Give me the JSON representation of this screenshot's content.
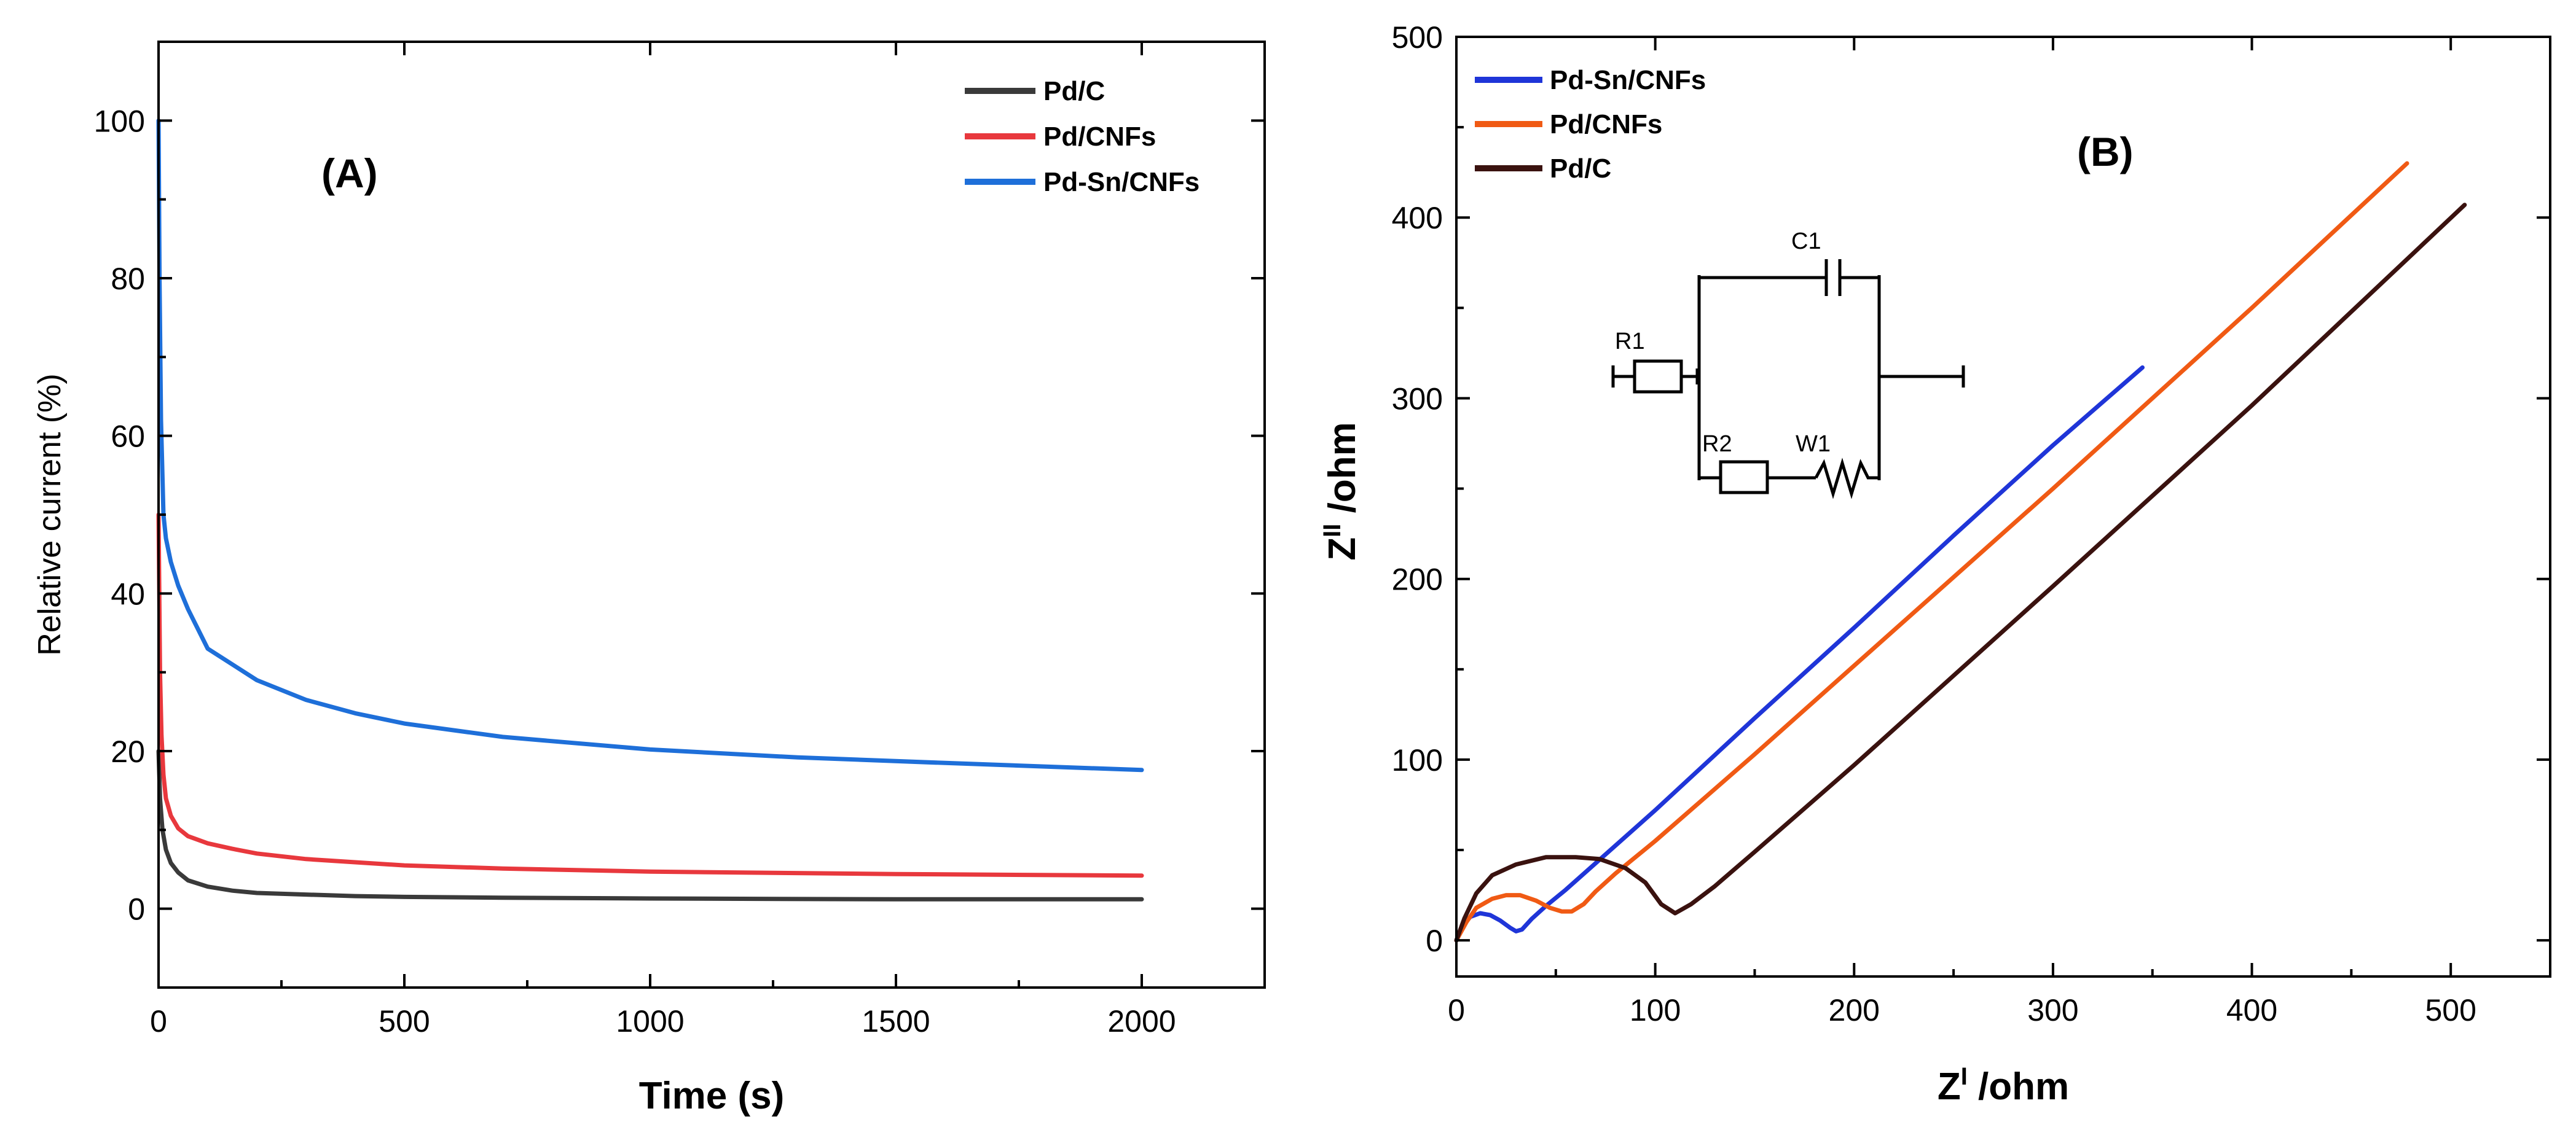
{
  "chart_data": [
    {
      "id": "A",
      "type": "line",
      "panel_label": "(A)",
      "xlabel": "Time (s)",
      "ylabel": "Relative current (%)",
      "xlim": [
        0,
        2250
      ],
      "ylim": [
        -10,
        110
      ],
      "xticks": [
        0,
        500,
        1000,
        1500,
        2000
      ],
      "yticks": [
        0,
        20,
        40,
        60,
        80,
        100
      ],
      "legend_position": "top-right",
      "series": [
        {
          "name": "Pd/C",
          "color": "#3a3a3a",
          "x": [
            0,
            3,
            8,
            15,
            25,
            40,
            60,
            100,
            150,
            200,
            300,
            400,
            500,
            700,
            1000,
            1500,
            2000
          ],
          "y": [
            20,
            14,
            10,
            7.5,
            5.8,
            4.6,
            3.6,
            2.8,
            2.3,
            2.0,
            1.8,
            1.6,
            1.5,
            1.4,
            1.3,
            1.2,
            1.2
          ]
        },
        {
          "name": "Pd/CNFs",
          "color": "#e8383d",
          "x": [
            0,
            3,
            6,
            10,
            15,
            25,
            40,
            60,
            100,
            150,
            200,
            300,
            400,
            500,
            700,
            1000,
            1500,
            2000
          ],
          "y": [
            50,
            30,
            22,
            17,
            14,
            11.8,
            10.2,
            9.2,
            8.3,
            7.6,
            7.0,
            6.3,
            5.9,
            5.5,
            5.1,
            4.7,
            4.4,
            4.2
          ]
        },
        {
          "name": "Pd-Sn/CNFs",
          "color": "#1e6fd9",
          "x": [
            0,
            2,
            5,
            10,
            15,
            25,
            40,
            60,
            80,
            100,
            150,
            200,
            300,
            400,
            500,
            700,
            1000,
            1300,
            1600,
            2000
          ],
          "y": [
            100,
            80,
            62,
            50,
            47,
            44,
            41,
            38,
            35.5,
            33,
            31,
            29,
            26.5,
            24.8,
            23.5,
            21.8,
            20.2,
            19.2,
            18.5,
            17.6
          ]
        }
      ]
    },
    {
      "id": "B",
      "type": "line",
      "panel_label": "(B)",
      "xlabel": "Z",
      "xlabel_sup": "I",
      "xlabel_unit": " /ohm",
      "ylabel": "Z",
      "ylabel_sup": "II",
      "ylabel_unit": " /ohm",
      "xlim": [
        0,
        550
      ],
      "ylim": [
        -20,
        500
      ],
      "xticks": [
        0,
        100,
        200,
        300,
        400,
        500
      ],
      "yticks": [
        0,
        100,
        200,
        300,
        400,
        500
      ],
      "legend_position": "top-left",
      "series": [
        {
          "name": "Pd-Sn/CNFs",
          "color": "#1f35d8",
          "x": [
            0,
            3,
            7,
            12,
            17,
            22,
            27,
            30,
            33,
            38,
            45,
            55,
            100,
            150,
            200,
            250,
            300,
            345
          ],
          "y": [
            0,
            8,
            13,
            15,
            14,
            11,
            7,
            5,
            6,
            12,
            19,
            28,
            72,
            123,
            173,
            224,
            274,
            317
          ]
        },
        {
          "name": "Pd/CNFs",
          "color": "#f05a14",
          "x": [
            0,
            5,
            10,
            18,
            25,
            32,
            40,
            47,
            53,
            58,
            64,
            70,
            80,
            100,
            150,
            200,
            300,
            400,
            478
          ],
          "y": [
            0,
            10,
            18,
            23,
            25,
            25,
            22,
            18,
            16,
            16,
            20,
            27,
            37,
            55,
            103,
            152,
            250,
            350,
            430
          ]
        },
        {
          "name": "Pd/C",
          "color": "#3a120f",
          "x": [
            0,
            4,
            10,
            18,
            30,
            45,
            60,
            72,
            85,
            95,
            103,
            110,
            118,
            130,
            150,
            200,
            300,
            400,
            507
          ],
          "y": [
            0,
            12,
            26,
            36,
            42,
            46,
            46,
            45,
            40,
            32,
            20,
            15,
            20,
            30,
            49,
            97,
            196,
            296,
            407
          ]
        }
      ],
      "inset_circuit": {
        "labels": [
          "C1",
          "R1",
          "R2",
          "W1"
        ]
      }
    }
  ]
}
